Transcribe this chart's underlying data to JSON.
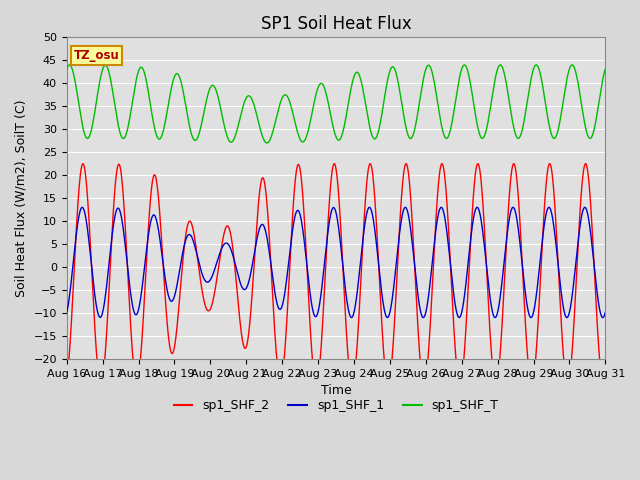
{
  "title": "SP1 Soil Heat Flux",
  "xlabel": "Time",
  "ylabel": "Soil Heat Flux (W/m2), SoilT (C)",
  "ylim": [
    -20,
    50
  ],
  "xlim": [
    0,
    15
  ],
  "xtick_labels": [
    "Aug 16",
    "Aug 17",
    "Aug 18",
    "Aug 19",
    "Aug 20",
    "Aug 21",
    "Aug 22",
    "Aug 23",
    "Aug 24",
    "Aug 25",
    "Aug 26",
    "Aug 27",
    "Aug 28",
    "Aug 29",
    "Aug 30",
    "Aug 31"
  ],
  "xtick_positions": [
    0,
    1,
    2,
    3,
    4,
    5,
    6,
    7,
    8,
    9,
    10,
    11,
    12,
    13,
    14,
    15
  ],
  "color_shf2": "#ff0000",
  "color_shf1": "#0000cc",
  "color_shfT": "#00bb00",
  "bg_color": "#e0e0e0",
  "tz_label": "TZ_osu",
  "legend_labels": [
    "sp1_SHF_2",
    "sp1_SHF_1",
    "sp1_SHF_T"
  ],
  "title_fontsize": 12,
  "axis_fontsize": 9,
  "tick_fontsize": 8,
  "yticks": [
    -20,
    -15,
    -10,
    -5,
    0,
    5,
    10,
    15,
    20,
    25,
    30,
    35,
    40,
    45,
    50
  ]
}
